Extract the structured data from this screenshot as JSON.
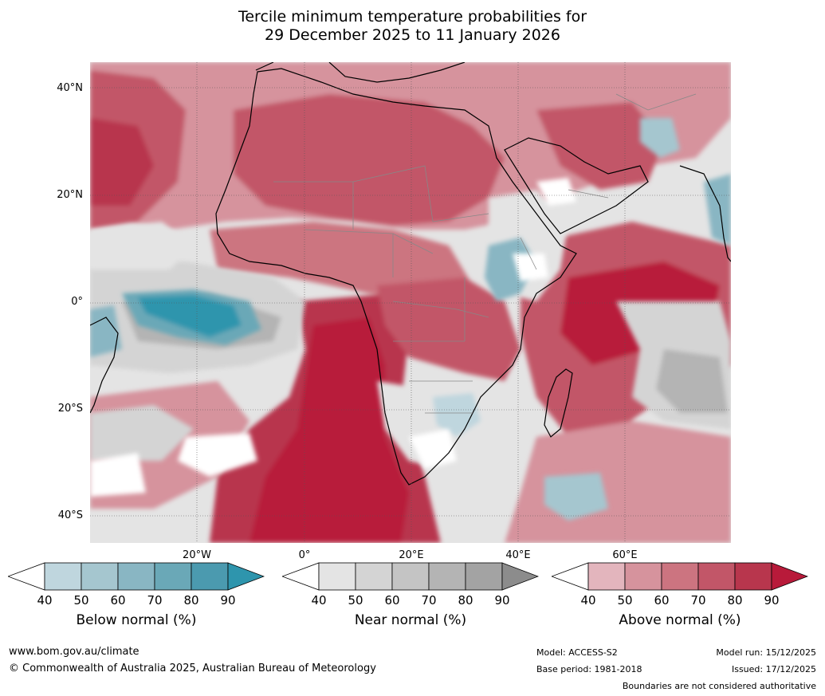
{
  "title": {
    "line1": "Tercile minimum temperature probabilities for",
    "line2": "29 December 2025 to 11 January 2026"
  },
  "map": {
    "lat_labels": [
      "40°N",
      "20°N",
      "0°",
      "20°S",
      "40°S"
    ],
    "lon_labels": [
      "20°W",
      "0°",
      "20°E",
      "40°E",
      "60°E"
    ],
    "colors": {
      "above": [
        "#e3b5bd",
        "#d6939d",
        "#cc7480",
        "#c25668",
        "#b8364d",
        "#b81a3a"
      ],
      "near": [
        "#e4e4e4",
        "#d4d4d4",
        "#c4c4c4",
        "#b4b4b4",
        "#a3a3a3",
        "#8c8c8c"
      ],
      "below": [
        "#bfd6de",
        "#a5c6cf",
        "#89b6c3",
        "#6aa8b7",
        "#4b9aaf",
        "#2e95ad"
      ],
      "coast": "#000000",
      "border": "#888888"
    }
  },
  "legends": [
    {
      "name": "Below normal (%)",
      "ticks": [
        "40",
        "50",
        "60",
        "70",
        "80",
        "90"
      ],
      "colors": [
        "#bfd6de",
        "#a5c6cf",
        "#89b6c3",
        "#6aa8b7",
        "#4b9aaf",
        "#2e95ad"
      ]
    },
    {
      "name": "Near normal (%)",
      "ticks": [
        "40",
        "50",
        "60",
        "70",
        "80",
        "90"
      ],
      "colors": [
        "#e4e4e4",
        "#d4d4d4",
        "#c4c4c4",
        "#b4b4b4",
        "#a3a3a3",
        "#8c8c8c"
      ]
    },
    {
      "name": "Above normal (%)",
      "ticks": [
        "40",
        "50",
        "60",
        "70",
        "80",
        "90"
      ],
      "colors": [
        "#e3b5bd",
        "#d6939d",
        "#cc7480",
        "#c25668",
        "#b8364d",
        "#b81a3a"
      ]
    }
  ],
  "footer": {
    "website": "www.bom.gov.au/climate",
    "copyright": "© Commonwealth of Australia 2025, Australian Bureau of Meteorology",
    "model": "Model: ACCESS-S2",
    "base_period": "Base period: 1981-2018",
    "model_run": "Model run: 15/12/2025",
    "issued": "Issued: 17/12/2025",
    "disclaimer": "Boundaries are not considered authoritative"
  }
}
